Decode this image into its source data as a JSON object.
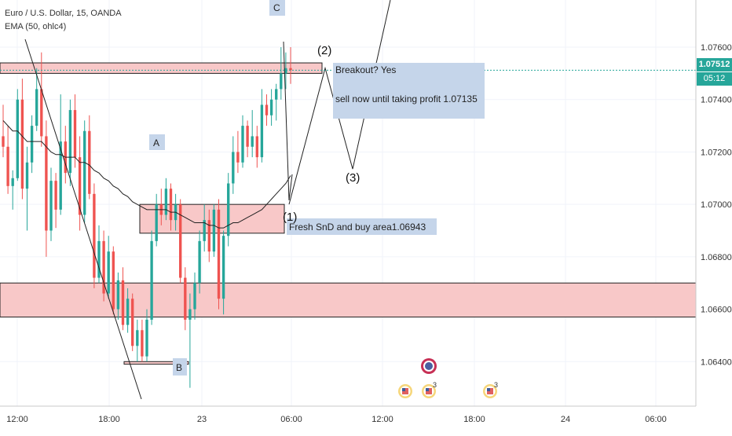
{
  "header": {
    "symbol_line": "Euro / U.S. Dollar, 15, OANDA",
    "indicator_line": "EMA (50, ohlc4)"
  },
  "price_tag": {
    "value": "1.07512",
    "countdown": "05:12",
    "color": "#26a69a"
  },
  "colors": {
    "up": "#26a69a",
    "down": "#ef5350",
    "zone_fill": "#f8c8c8",
    "note_fill": "#c5d5ea",
    "line": "#222222"
  },
  "annotations": {
    "label_a": "A",
    "label_b": "B",
    "label_c": "C",
    "wave_1": "(1)",
    "wave_2": "(2)",
    "wave_3": "(3)",
    "note_breakout_1": "Breakout? Yes",
    "note_breakout_2": "sell now until taking profit 1.07135",
    "note_buy": "Fresh SnD and buy area1.06943"
  },
  "events": [
    "flag-us",
    "flag-us-3",
    "flag-global",
    "flag-us-3"
  ],
  "chart_data": {
    "type": "candlestick",
    "instrument": "Euro / U.S. Dollar, 15, OANDA",
    "indicator": "EMA (50, ohlc4)",
    "ylim": [
      1.0623,
      1.0778
    ],
    "y_ticks": [
      "1.07600",
      "1.07400",
      "1.07200",
      "1.07000",
      "1.06800",
      "1.06600",
      "1.06400"
    ],
    "x_ticks": [
      "12:00",
      "18:00",
      "23",
      "06:00",
      "12:00",
      "18:00",
      "24",
      "06:00"
    ],
    "last_price": 1.07512,
    "candles": [
      [
        1.0726,
        1.0738,
        1.0718,
        1.0722
      ],
      [
        1.0722,
        1.073,
        1.0704,
        1.0707
      ],
      [
        1.0707,
        1.0713,
        1.0698,
        1.071
      ],
      [
        1.071,
        1.0744,
        1.0709,
        1.074
      ],
      [
        1.074,
        1.0748,
        1.0702,
        1.0706
      ],
      [
        1.0706,
        1.0722,
        1.069,
        1.0716
      ],
      [
        1.0716,
        1.0734,
        1.0712,
        1.073
      ],
      [
        1.073,
        1.0752,
        1.0728,
        1.0744
      ],
      [
        1.0744,
        1.0758,
        1.0722,
        1.0726
      ],
      [
        1.0726,
        1.0732,
        1.068,
        1.069
      ],
      [
        1.069,
        1.0714,
        1.0686,
        1.0709
      ],
      [
        1.0709,
        1.0712,
        1.0691,
        1.0698
      ],
      [
        1.0698,
        1.0742,
        1.0696,
        1.0724
      ],
      [
        1.0724,
        1.073,
        1.0708,
        1.0712
      ],
      [
        1.0712,
        1.074,
        1.0707,
        1.0736
      ],
      [
        1.0736,
        1.0742,
        1.0714,
        1.0718
      ],
      [
        1.0718,
        1.0726,
        1.069,
        1.0696
      ],
      [
        1.0696,
        1.0732,
        1.0693,
        1.0728
      ],
      [
        1.0728,
        1.0734,
        1.0702,
        1.0704
      ],
      [
        1.0704,
        1.0708,
        1.0668,
        1.0672
      ],
      [
        1.0672,
        1.0692,
        1.067,
        1.0686
      ],
      [
        1.0686,
        1.069,
        1.0663,
        1.0666
      ],
      [
        1.0666,
        1.0688,
        1.0664,
        1.0682
      ],
      [
        1.0682,
        1.0684,
        1.0658,
        1.066
      ],
      [
        1.066,
        1.0674,
        1.0656,
        1.0671
      ],
      [
        1.0671,
        1.0676,
        1.0652,
        1.0654
      ],
      [
        1.0654,
        1.0668,
        1.0651,
        1.0664
      ],
      [
        1.0664,
        1.0666,
        1.0644,
        1.0646
      ],
      [
        1.0646,
        1.0656,
        1.064,
        1.0652
      ],
      [
        1.0652,
        1.0656,
        1.064,
        1.0642
      ],
      [
        1.0642,
        1.066,
        1.064,
        1.0656
      ],
      [
        1.0656,
        1.069,
        1.0654,
        1.0686
      ],
      [
        1.0686,
        1.0704,
        1.0684,
        1.07
      ],
      [
        1.07,
        1.0706,
        1.0692,
        1.0696
      ],
      [
        1.0696,
        1.071,
        1.0694,
        1.0706
      ],
      [
        1.0706,
        1.0708,
        1.069,
        1.0694
      ],
      [
        1.0694,
        1.0704,
        1.069,
        1.07
      ],
      [
        1.07,
        1.0702,
        1.067,
        1.0672
      ],
      [
        1.0672,
        1.0676,
        1.0652,
        1.0656
      ],
      [
        1.0656,
        1.0666,
        1.063,
        1.066
      ],
      [
        1.066,
        1.0674,
        1.0656,
        1.067
      ],
      [
        1.067,
        1.069,
        1.0666,
        1.0686
      ],
      [
        1.0686,
        1.07,
        1.0682,
        1.0694
      ],
      [
        1.0694,
        1.0698,
        1.0678,
        1.0682
      ],
      [
        1.0682,
        1.07,
        1.068,
        1.0698
      ],
      [
        1.0698,
        1.0702,
        1.066,
        1.0664
      ],
      [
        1.0664,
        1.069,
        1.0658,
        1.0688
      ],
      [
        1.0688,
        1.0712,
        1.0684,
        1.0708
      ],
      [
        1.0708,
        1.0726,
        1.0704,
        1.072
      ],
      [
        1.072,
        1.0728,
        1.0712,
        1.0716
      ],
      [
        1.0716,
        1.0734,
        1.0714,
        1.073
      ],
      [
        1.073,
        1.0732,
        1.0718,
        1.0722
      ],
      [
        1.0722,
        1.0736,
        1.0718,
        1.0726
      ],
      [
        1.0726,
        1.073,
        1.0714,
        1.0718
      ],
      [
        1.0718,
        1.0744,
        1.0716,
        1.0738
      ],
      [
        1.0738,
        1.0742,
        1.073,
        1.0734
      ],
      [
        1.0734,
        1.0744,
        1.073,
        1.074
      ],
      [
        1.074,
        1.0746,
        1.0732,
        1.0744
      ],
      [
        1.0744,
        1.076,
        1.074,
        1.075
      ],
      [
        1.075,
        1.0758,
        1.0744,
        1.0752
      ],
      [
        1.0752,
        1.076,
        1.0746,
        1.07512
      ]
    ],
    "ema": [
      1.0732,
      1.073,
      1.0728,
      1.0728,
      1.0726,
      1.0724,
      1.0724,
      1.0724,
      1.0724,
      1.0722,
      1.072,
      1.0719,
      1.0719,
      1.0718,
      1.0718,
      1.0718,
      1.0716,
      1.0716,
      1.0715,
      1.0713,
      1.0712,
      1.071,
      1.0709,
      1.0707,
      1.0706,
      1.0704,
      1.0703,
      1.0701,
      1.07,
      1.0699,
      1.0698,
      1.0698,
      1.0698,
      1.0698,
      1.0698,
      1.0697,
      1.0697,
      1.0696,
      1.0695,
      1.0694,
      1.0693,
      1.0693,
      1.0693,
      1.0692,
      1.0692,
      1.0691,
      1.0691,
      1.0692,
      1.0693,
      1.0693,
      1.0694,
      1.0695,
      1.0696,
      1.0697,
      1.0698,
      1.07,
      1.0702,
      1.0704,
      1.0706,
      1.0708,
      1.0711
    ],
    "zones": [
      {
        "from": 1.0754,
        "to": 1.075
      },
      {
        "from": 1.07,
        "to": 1.0689
      },
      {
        "from": 1.067,
        "to": 1.0657
      },
      {
        "from": 1.064,
        "to": 1.0639
      }
    ],
    "wave_path": [
      [
        1.07,
        1.0752
      ],
      [
        1.0752,
        1.07135
      ],
      [
        1.07135,
        1.0778
      ]
    ]
  }
}
